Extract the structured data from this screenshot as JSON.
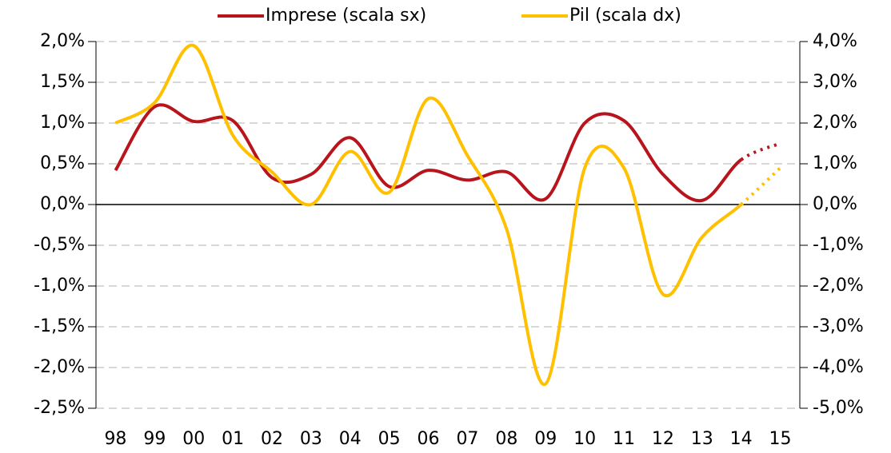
{
  "chart_data": {
    "type": "line",
    "categories": [
      "98",
      "99",
      "00",
      "01",
      "02",
      "03",
      "04",
      "05",
      "06",
      "07",
      "08",
      "09",
      "10",
      "11",
      "12",
      "13",
      "14",
      "15"
    ],
    "series": [
      {
        "name": "Imprese (scala sx)",
        "color": "#b8141c",
        "axis": "y",
        "dotted_last_segment": true,
        "values": [
          0.42,
          1.2,
          1.02,
          1.03,
          0.33,
          0.37,
          0.82,
          0.22,
          0.42,
          0.3,
          0.4,
          0.07,
          1.0,
          1.03,
          0.37,
          0.05,
          0.55,
          0.75
        ]
      },
      {
        "name": "Pil (scala dx)",
        "color": "#ffc000",
        "axis": "y2",
        "dotted_last_segment": true,
        "values": [
          2.0,
          2.5,
          3.9,
          1.7,
          0.8,
          0.0,
          1.3,
          0.3,
          2.6,
          1.2,
          -0.6,
          -4.4,
          0.9,
          0.9,
          -2.2,
          -0.8,
          0.0,
          0.9
        ]
      }
    ],
    "ylim": [
      -2.5,
      2.0
    ],
    "yticks": [
      {
        "value": -2.5,
        "label": "-2,5%"
      },
      {
        "value": -2.0,
        "label": "-2,0%"
      },
      {
        "value": -1.5,
        "label": "-1,5%"
      },
      {
        "value": -1.0,
        "label": "-1,0%"
      },
      {
        "value": -0.5,
        "label": "-0,5%"
      },
      {
        "value": 0,
        "label": "0,0%"
      },
      {
        "value": 0.5,
        "label": "0,5%"
      },
      {
        "value": 1.0,
        "label": "1,0%"
      },
      {
        "value": 1.5,
        "label": "1,5%"
      },
      {
        "value": 2.0,
        "label": "2,0%"
      }
    ],
    "y2lim": [
      -5.0,
      4.0
    ],
    "y2ticks": [
      {
        "value": -5,
        "label": "-5,0%"
      },
      {
        "value": -4,
        "label": "-4,0%"
      },
      {
        "value": -3,
        "label": "-3,0%"
      },
      {
        "value": -2,
        "label": "-2,0%"
      },
      {
        "value": -1,
        "label": "-1,0%"
      },
      {
        "value": 0,
        "label": "0,0%"
      },
      {
        "value": 1,
        "label": "1,0%"
      },
      {
        "value": 2,
        "label": "2,0%"
      },
      {
        "value": 3,
        "label": "3,0%"
      },
      {
        "value": 4,
        "label": "4,0%"
      }
    ],
    "grid": true
  }
}
